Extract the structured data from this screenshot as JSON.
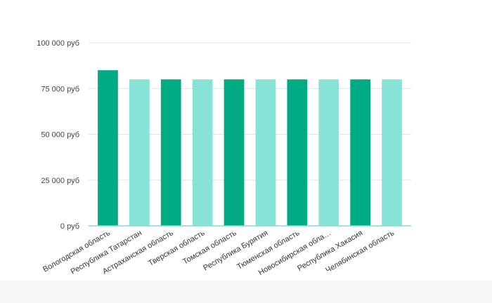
{
  "chart_data": {
    "type": "bar",
    "title": "",
    "xlabel": "",
    "ylabel": "",
    "ylim": [
      0,
      100000
    ],
    "yticks": [
      0,
      25000,
      50000,
      75000,
      100000
    ],
    "ytick_labels": [
      "0 руб",
      "25 000 руб",
      "50 000 руб",
      "75 000 руб",
      "100 000 руб"
    ],
    "categories": [
      "Вологодская область",
      "Республика Татарстан",
      "Астраханская область",
      "Тверская область",
      "Томская область",
      "Республика Бурятия",
      "Тюменская область",
      "Новосибирская обла…",
      "Республика Хакасия",
      "Челябинская область"
    ],
    "values": [
      85000,
      80000,
      80000,
      80000,
      80000,
      80000,
      80000,
      80000,
      80000,
      80000
    ],
    "bar_colors": [
      "#00ab84",
      "#86e3d6",
      "#00ab84",
      "#86e3d6",
      "#00ab84",
      "#86e3d6",
      "#00ab84",
      "#86e3d6",
      "#00ab84",
      "#86e3d6"
    ],
    "grid": true,
    "legend": "none"
  },
  "colors": {
    "grid": "#e3e3e3",
    "axis": "#8fd9c8"
  }
}
